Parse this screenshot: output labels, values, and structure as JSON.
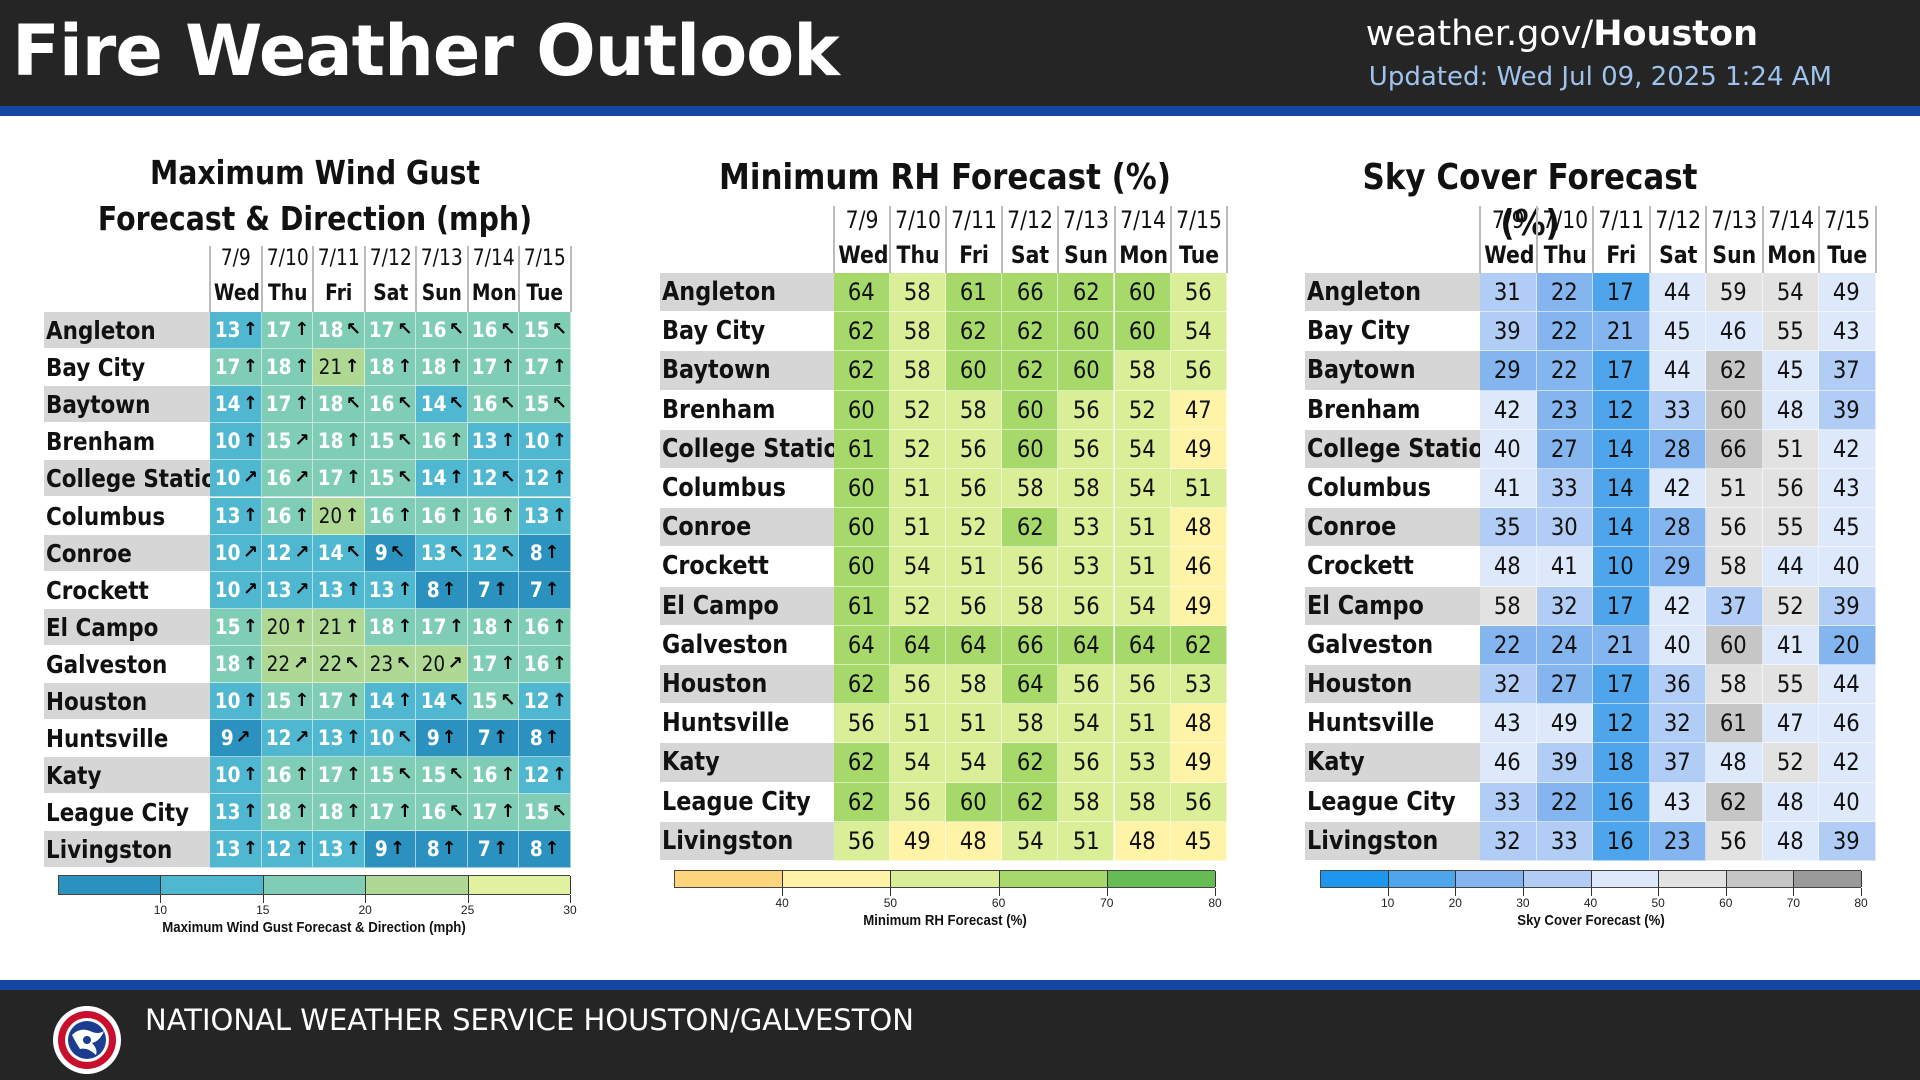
{
  "header": {
    "title": "Fire Weather Outlook",
    "site_prefix": "weather.gov/",
    "site_office": "Houston",
    "updated": "Updated: Wed Jul 09, 2025 1:24 AM"
  },
  "footer": {
    "office": "NATIONAL WEATHER SERVICE HOUSTON/GALVESTON"
  },
  "colors": {
    "header_bg": "#252525",
    "stripe": "#1646a3",
    "updated_text": "#9fc3ec"
  },
  "dates": [
    "7/9",
    "7/10",
    "7/11",
    "7/12",
    "7/13",
    "7/14",
    "7/15"
  ],
  "days": [
    "Wed",
    "Thu",
    "Fri",
    "Sat",
    "Sun",
    "Mon",
    "Tue"
  ],
  "cities": [
    "Angleton",
    "Bay City",
    "Baytown",
    "Brenham",
    "College Station",
    "Columbus",
    "Conroe",
    "Crockett",
    "El Campo",
    "Galveston",
    "Houston",
    "Huntsville",
    "Katy",
    "League City",
    "Livingston"
  ],
  "chart_data": [
    {
      "type": "heatmap",
      "title": "Maximum Wind Gust Forecast & Direction (mph)",
      "colorbar_label": "Maximum Wind Gust Forecast & Direction (mph)",
      "colorbar_ticks": [
        10,
        15,
        20,
        25,
        30
      ],
      "range": [
        5,
        30
      ],
      "values": [
        [
          13,
          17,
          18,
          17,
          16,
          16,
          15
        ],
        [
          17,
          18,
          21,
          18,
          18,
          17,
          17
        ],
        [
          14,
          17,
          18,
          16,
          14,
          16,
          15
        ],
        [
          10,
          15,
          18,
          15,
          16,
          13,
          10
        ],
        [
          10,
          16,
          17,
          15,
          14,
          12,
          12
        ],
        [
          13,
          16,
          20,
          16,
          16,
          16,
          13
        ],
        [
          10,
          12,
          14,
          9,
          13,
          12,
          8
        ],
        [
          10,
          13,
          13,
          13,
          8,
          7,
          7
        ],
        [
          15,
          20,
          21,
          18,
          17,
          18,
          16
        ],
        [
          18,
          22,
          22,
          23,
          20,
          17,
          16
        ],
        [
          10,
          15,
          17,
          14,
          14,
          15,
          12
        ],
        [
          9,
          12,
          13,
          10,
          9,
          7,
          8
        ],
        [
          10,
          16,
          17,
          15,
          15,
          16,
          12
        ],
        [
          13,
          18,
          18,
          17,
          16,
          17,
          15
        ],
        [
          13,
          12,
          13,
          9,
          8,
          7,
          8
        ]
      ],
      "arrows": [
        [
          "↑",
          "↑",
          "↖",
          "↖",
          "↖",
          "↖",
          "↖"
        ],
        [
          "↑",
          "↑",
          "↑",
          "↑",
          "↑",
          "↑",
          "↑"
        ],
        [
          "↑",
          "↑",
          "↖",
          "↖",
          "↖",
          "↖",
          "↖"
        ],
        [
          "↑",
          "↗",
          "↑",
          "↖",
          "↑",
          "↑",
          "↑"
        ],
        [
          "↗",
          "↗",
          "↑",
          "↖",
          "↑",
          "↖",
          "↑"
        ],
        [
          "↑",
          "↑",
          "↑",
          "↑",
          "↑",
          "↑",
          "↑"
        ],
        [
          "↗",
          "↗",
          "↖",
          "↖",
          "↖",
          "↖",
          "↑"
        ],
        [
          "↗",
          "↗",
          "↑",
          "↑",
          "↑",
          "↑",
          "↑"
        ],
        [
          "↑",
          "↑",
          "↑",
          "↑",
          "↑",
          "↑",
          "↑"
        ],
        [
          "↑",
          "↗",
          "↖",
          "↖",
          "↗",
          "↑",
          "↑"
        ],
        [
          "↑",
          "↑",
          "↑",
          "↑",
          "↖",
          "↖",
          "↑"
        ],
        [
          "↗",
          "↗",
          "↑",
          "↖",
          "↑",
          "↑",
          "↑"
        ],
        [
          "↑",
          "↑",
          "↑",
          "↖",
          "↖",
          "↑",
          "↑"
        ],
        [
          "↑",
          "↑",
          "↑",
          "↑",
          "↖",
          "↑",
          "↖"
        ],
        [
          "↑",
          "↑",
          "↑",
          "↑",
          "↑",
          "↑",
          "↑"
        ]
      ]
    },
    {
      "type": "heatmap",
      "title": "Minimum RH Forecast (%)",
      "colorbar_label": "Minimum RH Forecast (%)",
      "colorbar_ticks": [
        40,
        50,
        60,
        70,
        80
      ],
      "range": [
        30,
        80
      ],
      "values": [
        [
          64,
          58,
          61,
          66,
          62,
          60,
          56
        ],
        [
          62,
          58,
          62,
          62,
          60,
          60,
          54
        ],
        [
          62,
          58,
          60,
          62,
          60,
          58,
          56
        ],
        [
          60,
          52,
          58,
          60,
          56,
          52,
          47
        ],
        [
          61,
          52,
          56,
          60,
          56,
          54,
          49
        ],
        [
          60,
          51,
          56,
          58,
          58,
          54,
          51
        ],
        [
          60,
          51,
          52,
          62,
          53,
          51,
          48
        ],
        [
          60,
          54,
          51,
          56,
          53,
          51,
          46
        ],
        [
          61,
          52,
          56,
          58,
          56,
          54,
          49
        ],
        [
          64,
          64,
          64,
          66,
          64,
          64,
          62
        ],
        [
          62,
          56,
          58,
          64,
          56,
          56,
          53
        ],
        [
          56,
          51,
          51,
          58,
          54,
          51,
          48
        ],
        [
          62,
          54,
          54,
          62,
          56,
          53,
          49
        ],
        [
          62,
          56,
          60,
          62,
          58,
          58,
          56
        ],
        [
          56,
          49,
          48,
          54,
          51,
          48,
          45
        ]
      ]
    },
    {
      "type": "heatmap",
      "title": "Sky Cover Forecast (%)",
      "colorbar_label": "Sky Cover Forecast (%)",
      "colorbar_ticks": [
        10,
        20,
        30,
        40,
        50,
        60,
        70,
        80
      ],
      "range": [
        0,
        80
      ],
      "values": [
        [
          31,
          22,
          17,
          44,
          59,
          54,
          49
        ],
        [
          39,
          22,
          21,
          45,
          46,
          55,
          43
        ],
        [
          29,
          22,
          17,
          44,
          62,
          45,
          37
        ],
        [
          42,
          23,
          12,
          33,
          60,
          48,
          39
        ],
        [
          40,
          27,
          14,
          28,
          66,
          51,
          42
        ],
        [
          41,
          33,
          14,
          42,
          51,
          56,
          43
        ],
        [
          35,
          30,
          14,
          28,
          56,
          55,
          45
        ],
        [
          48,
          41,
          10,
          29,
          58,
          44,
          40
        ],
        [
          58,
          32,
          17,
          42,
          37,
          52,
          39
        ],
        [
          22,
          24,
          21,
          40,
          60,
          41,
          20
        ],
        [
          32,
          27,
          17,
          36,
          58,
          55,
          44
        ],
        [
          43,
          49,
          12,
          32,
          61,
          47,
          46
        ],
        [
          46,
          39,
          18,
          37,
          48,
          52,
          42
        ],
        [
          33,
          22,
          16,
          43,
          62,
          48,
          40
        ],
        [
          32,
          33,
          16,
          23,
          56,
          48,
          39
        ]
      ]
    }
  ]
}
